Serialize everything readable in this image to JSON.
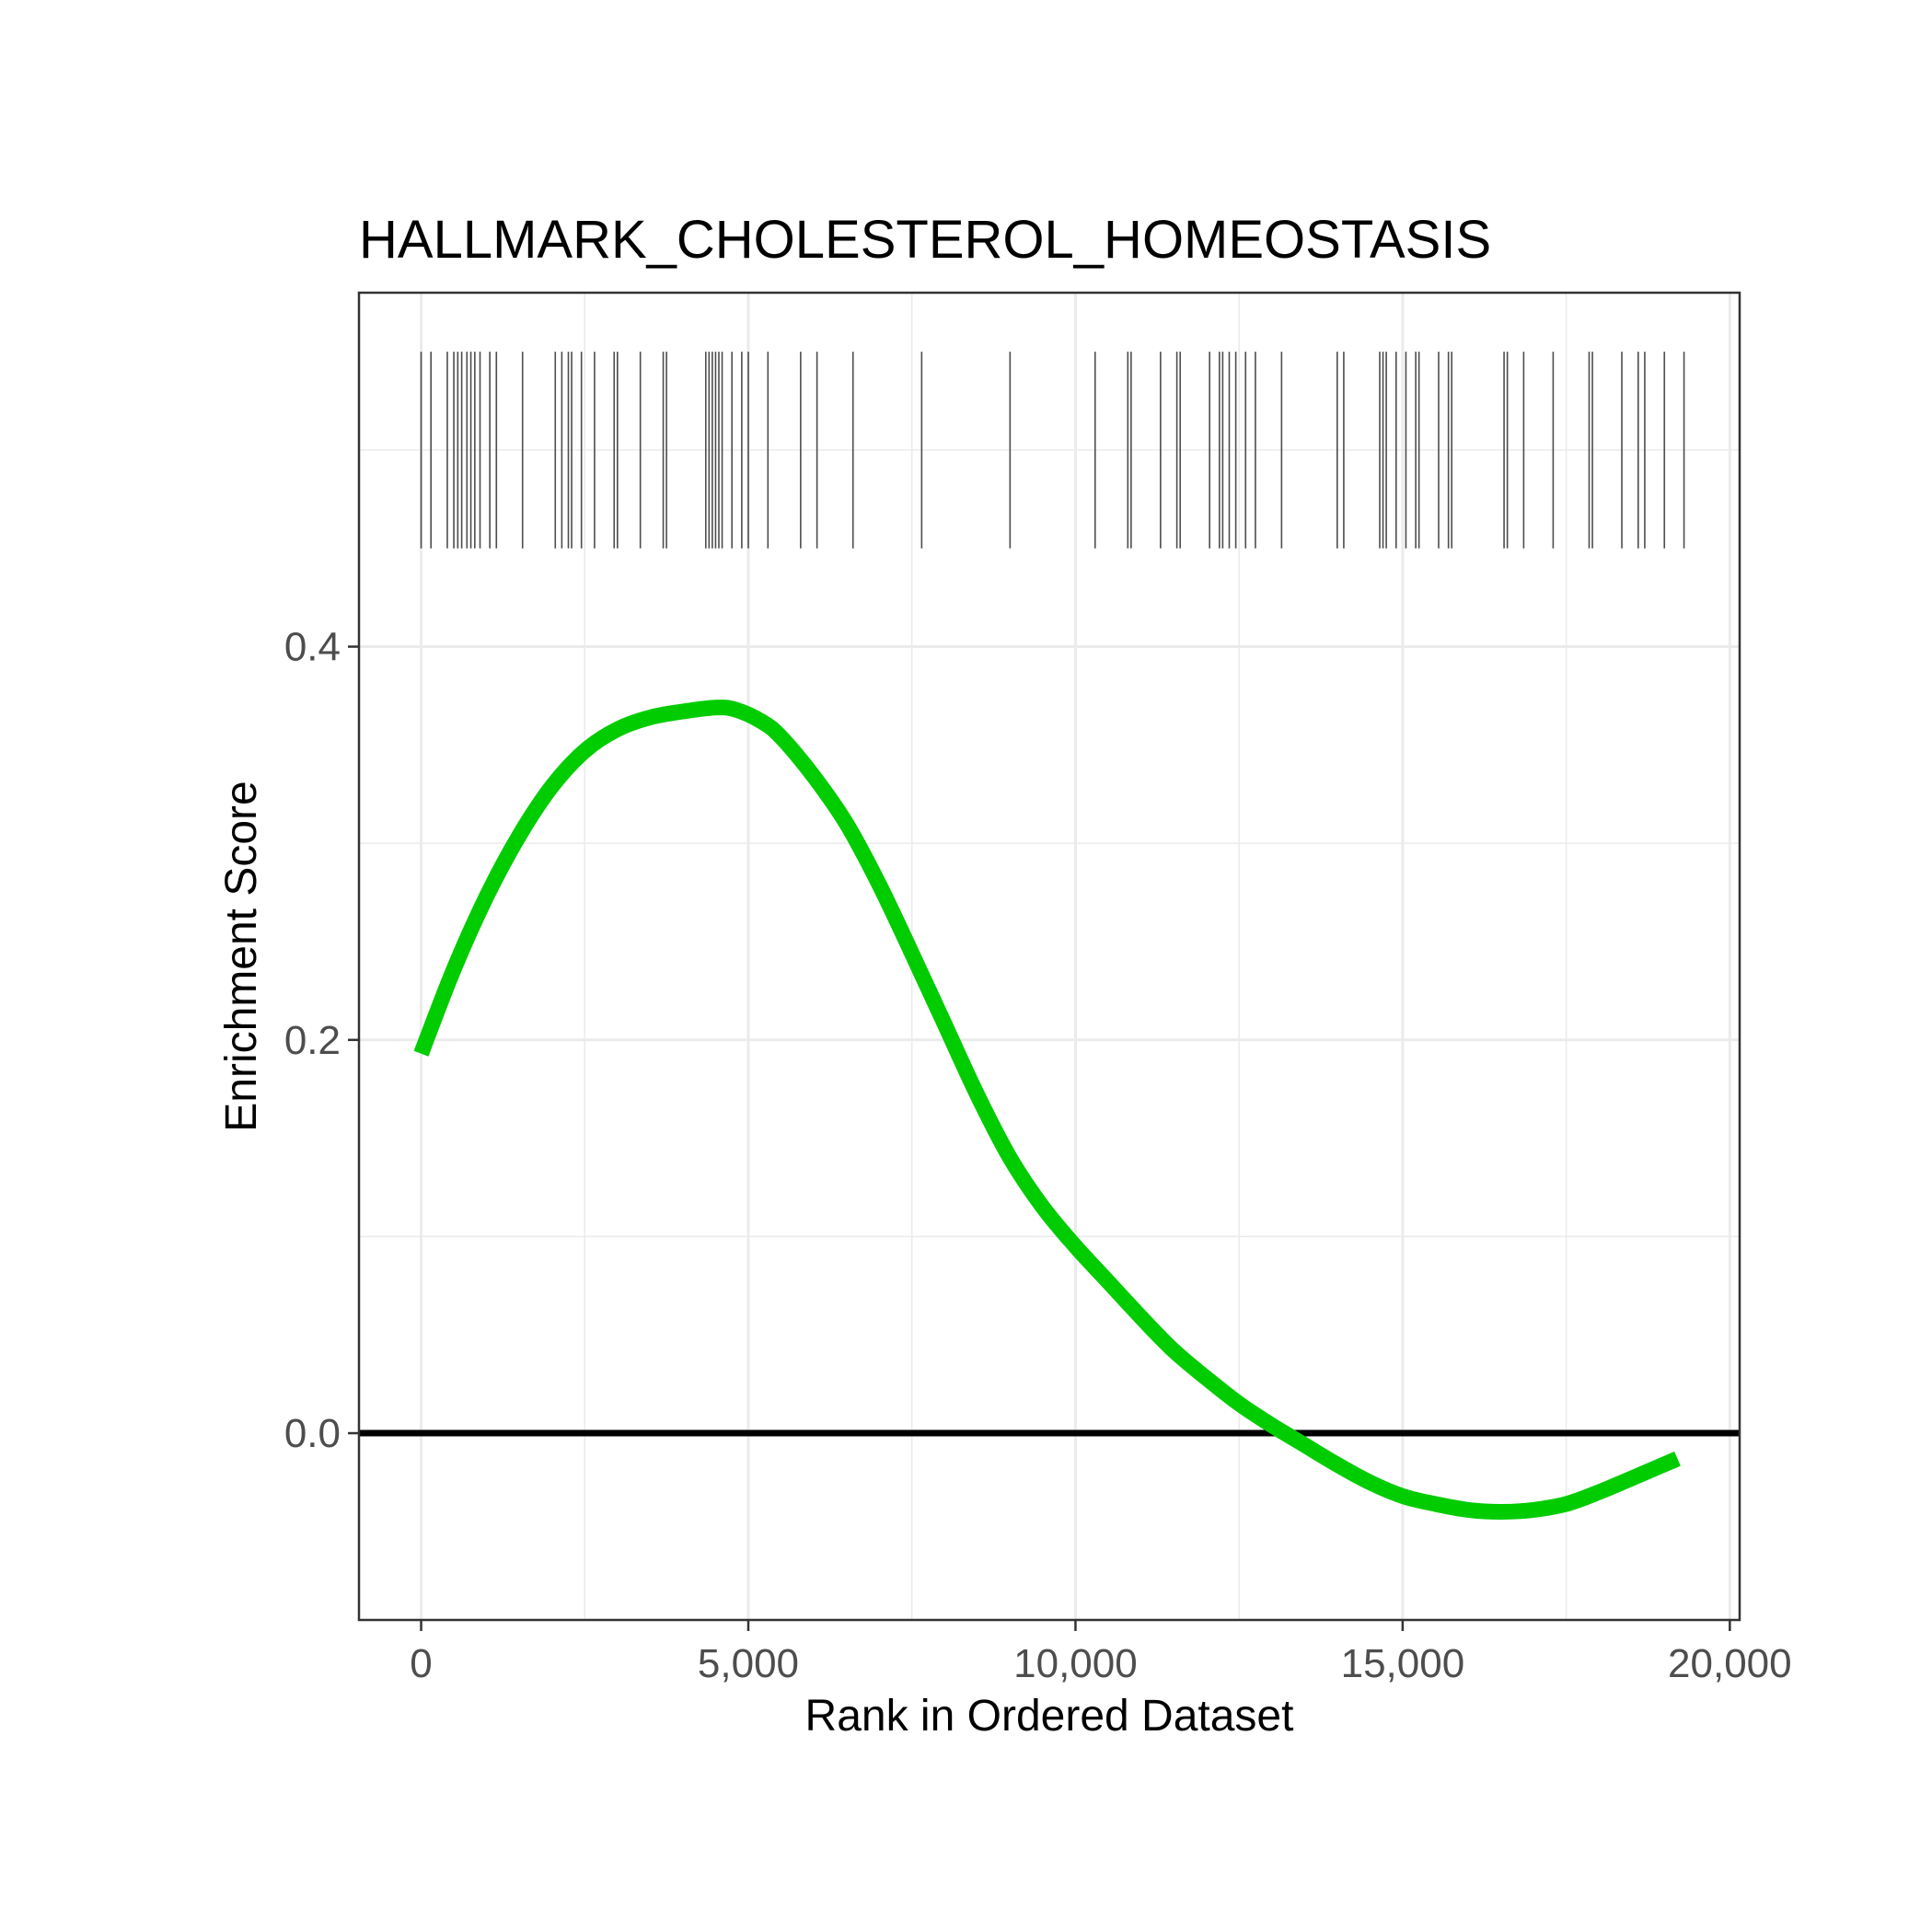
{
  "chart_data": {
    "type": "line",
    "title": "HALLMARK_CHOLESTEROL_HOMEOSTASIS",
    "xlabel": "Rank in Ordered Dataset",
    "ylabel": "Enrichment Score",
    "xlim": [
      -950,
      20150
    ],
    "ylim": [
      -0.095,
      0.58
    ],
    "x_ticks": [
      0,
      5000,
      10000,
      15000,
      20000
    ],
    "x_tick_labels": [
      "0",
      "5,000",
      "10,000",
      "15,000",
      "20,000"
    ],
    "y_ticks": [
      0.0,
      0.2,
      0.4
    ],
    "y_tick_labels": [
      "0.0",
      "0.2",
      "0.4"
    ],
    "grid": true,
    "legend": "none",
    "colors": {
      "curve": "#00cc00",
      "hit": "#4d4d4d",
      "zero_line": "#000000"
    },
    "reference_line_y": 0.0,
    "hit_band_y": [
      0.45,
      0.55
    ],
    "series": [
      {
        "x": [
          0,
          500,
          1000,
          1500,
          2000,
          2500,
          3000,
          3500,
          4000,
          4500,
          4800,
          5200,
          5500,
          6000,
          6500,
          7000,
          7500,
          8000,
          8500,
          9000,
          9500,
          10000,
          10500,
          11000,
          11500,
          12000,
          12500,
          13000,
          13500,
          14000,
          14500,
          15000,
          15500,
          16000,
          16500,
          17000,
          17500,
          18000,
          18500,
          19200
        ],
        "y": [
          0.193,
          0.236,
          0.273,
          0.304,
          0.329,
          0.347,
          0.358,
          0.364,
          0.367,
          0.369,
          0.368,
          0.362,
          0.354,
          0.334,
          0.31,
          0.279,
          0.244,
          0.208,
          0.172,
          0.14,
          0.115,
          0.095,
          0.077,
          0.059,
          0.042,
          0.028,
          0.015,
          0.004,
          -0.006,
          -0.016,
          -0.025,
          -0.032,
          -0.036,
          -0.039,
          -0.04,
          -0.039,
          -0.036,
          -0.03,
          -0.023,
          -0.013
        ]
      }
    ],
    "hits": [
      0,
      150,
      400,
      500,
      560,
      620,
      700,
      760,
      820,
      900,
      1050,
      1150,
      1550,
      2050,
      2150,
      2250,
      2300,
      2450,
      2650,
      2950,
      3000,
      3350,
      3700,
      3750,
      4350,
      4400,
      4450,
      4500,
      4550,
      4600,
      4750,
      4900,
      5000,
      5300,
      5800,
      6050,
      6600,
      7650,
      9000,
      10300,
      10800,
      10850,
      11300,
      11550,
      11600,
      12050,
      12200,
      12250,
      12350,
      12450,
      12600,
      12750,
      13150,
      14000,
      14100,
      14650,
      14700,
      14750,
      14900,
      15050,
      15200,
      15250,
      15550,
      15700,
      15750,
      16550,
      16600,
      16850,
      17300,
      17850,
      17900,
      18350,
      18600,
      18700,
      19000,
      19300
    ]
  }
}
